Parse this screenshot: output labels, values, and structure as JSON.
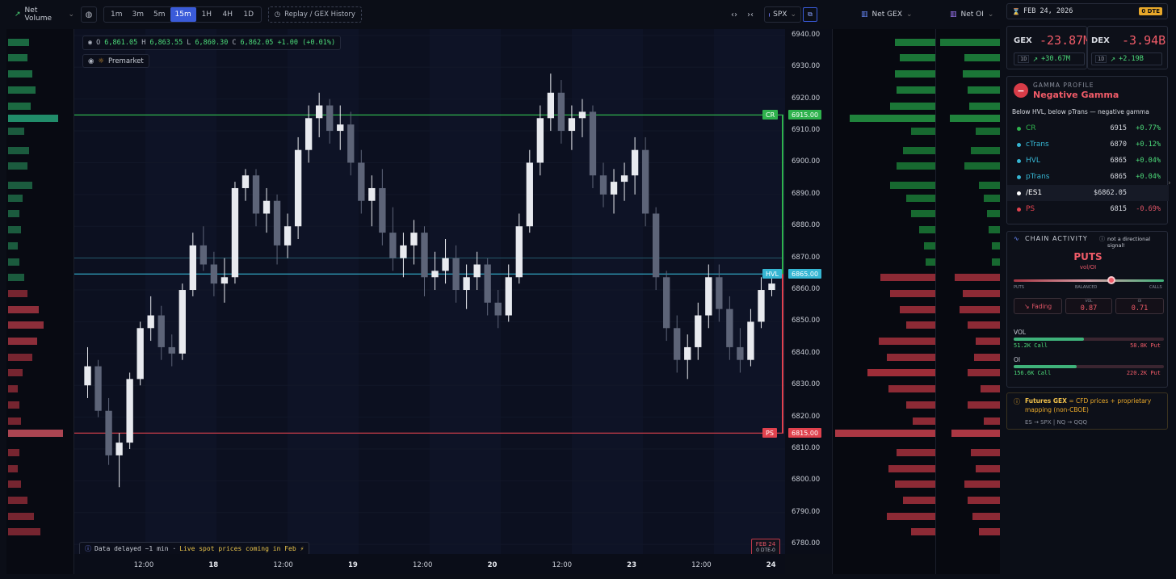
{
  "toolbar": {
    "indicator_label": "Net Volume",
    "timeframes": [
      {
        "label": "1m",
        "active": false
      },
      {
        "label": "3m",
        "active": false
      },
      {
        "label": "5m",
        "active": false
      },
      {
        "label": "15m",
        "active": true
      },
      {
        "label": "1H",
        "active": false
      },
      {
        "label": "4H",
        "active": false
      },
      {
        "label": "1D",
        "active": false
      }
    ],
    "replay_label": "Replay / GEX History",
    "symbol": "SPX",
    "net_gex_label": "Net GEX",
    "net_oi_label": "Net OI"
  },
  "ohlc": {
    "o_label": "O",
    "o": "6,861.05",
    "h_label": "H",
    "h": "6,863.55",
    "l_label": "L",
    "l": "6,860.30",
    "c_label": "C",
    "c": "6,862.05",
    "change": "+1.00 (+0.01%)"
  },
  "premarket_label": "Premarket",
  "delay_notice": {
    "text": "Data delayed ~1 min · ",
    "live": "Live spot prices coming in Feb ⚡"
  },
  "expiry_badge": {
    "date": "FEB 24",
    "tag": "0 DTE-0"
  },
  "chart_data": {
    "type": "candlestick",
    "symbol": "SPX",
    "timeframe": "15m",
    "y_ticks": [
      6940,
      6930,
      6920,
      6910,
      6900,
      6890,
      6880,
      6870,
      6860,
      6850,
      6840,
      6830,
      6820,
      6810,
      6800,
      6790,
      6780
    ],
    "y_tick_labels": [
      "6940.00",
      "6930.00",
      "6920.00",
      "6910.00",
      "6900.00",
      "6890.00",
      "6880.00",
      "6870.00",
      "6860.00",
      "6850.00",
      "6840.00",
      "6830.00",
      "6820.00",
      "6810.00",
      "6800.00",
      "6790.00",
      "6780.00"
    ],
    "ylim": [
      6777,
      6942
    ],
    "x_ticks": [
      {
        "label": "12:00",
        "bold": false
      },
      {
        "label": "18",
        "bold": true
      },
      {
        "label": "12:00",
        "bold": false
      },
      {
        "label": "19",
        "bold": true
      },
      {
        "label": "12:00",
        "bold": false
      },
      {
        "label": "20",
        "bold": true
      },
      {
        "label": "12:00",
        "bold": false
      },
      {
        "label": "23",
        "bold": true
      },
      {
        "label": "12:00",
        "bold": false
      },
      {
        "label": "24",
        "bold": true
      }
    ],
    "levels": [
      {
        "name": "CR",
        "value": 6915,
        "label": "6915.00",
        "color": "#2fb24d"
      },
      {
        "name": "HVL",
        "value": 6865,
        "label": "6865.00",
        "color": "#36b6d3"
      },
      {
        "name": "PS",
        "value": 6815,
        "label": "6815.00",
        "color": "#e0424e"
      }
    ],
    "secondary_line": 6870,
    "last_price": 6862.05,
    "candles": [
      [
        6830,
        6842,
        6826,
        6836
      ],
      [
        6836,
        6838,
        6820,
        6822
      ],
      [
        6822,
        6826,
        6805,
        6808
      ],
      [
        6808,
        6815,
        6798,
        6812
      ],
      [
        6812,
        6834,
        6810,
        6832
      ],
      [
        6832,
        6850,
        6830,
        6848
      ],
      [
        6848,
        6858,
        6844,
        6852
      ],
      [
        6852,
        6855,
        6838,
        6842
      ],
      [
        6842,
        6846,
        6836,
        6840
      ],
      [
        6840,
        6862,
        6838,
        6860
      ],
      [
        6860,
        6878,
        6858,
        6874
      ],
      [
        6874,
        6880,
        6866,
        6868
      ],
      [
        6868,
        6872,
        6858,
        6862
      ],
      [
        6862,
        6870,
        6856,
        6864
      ],
      [
        6864,
        6894,
        6862,
        6892
      ],
      [
        6892,
        6898,
        6888,
        6896
      ],
      [
        6896,
        6898,
        6880,
        6884
      ],
      [
        6884,
        6892,
        6878,
        6888
      ],
      [
        6888,
        6890,
        6868,
        6874
      ],
      [
        6874,
        6884,
        6870,
        6880
      ],
      [
        6880,
        6908,
        6876,
        6904
      ],
      [
        6904,
        6918,
        6900,
        6914
      ],
      [
        6914,
        6922,
        6908,
        6918
      ],
      [
        6918,
        6920,
        6906,
        6910
      ],
      [
        6910,
        6918,
        6904,
        6912
      ],
      [
        6912,
        6916,
        6896,
        6900
      ],
      [
        6900,
        6904,
        6884,
        6888
      ],
      [
        6888,
        6896,
        6880,
        6892
      ],
      [
        6892,
        6898,
        6874,
        6878
      ],
      [
        6878,
        6886,
        6866,
        6870
      ],
      [
        6870,
        6878,
        6864,
        6874
      ],
      [
        6874,
        6882,
        6868,
        6878
      ],
      [
        6878,
        6880,
        6858,
        6864
      ],
      [
        6864,
        6872,
        6860,
        6866
      ],
      [
        6866,
        6876,
        6862,
        6870
      ],
      [
        6870,
        6874,
        6856,
        6860
      ],
      [
        6860,
        6868,
        6854,
        6864
      ],
      [
        6864,
        6872,
        6860,
        6868
      ],
      [
        6868,
        6870,
        6852,
        6856
      ],
      [
        6856,
        6860,
        6848,
        6852
      ],
      [
        6852,
        6868,
        6850,
        6864
      ],
      [
        6864,
        6884,
        6862,
        6880
      ],
      [
        6880,
        6904,
        6878,
        6900
      ],
      [
        6900,
        6918,
        6896,
        6914
      ],
      [
        6914,
        6928,
        6910,
        6922
      ],
      [
        6922,
        6926,
        6906,
        6910
      ],
      [
        6910,
        6918,
        6904,
        6914
      ],
      [
        6914,
        6920,
        6908,
        6916
      ],
      [
        6916,
        6918,
        6892,
        6896
      ],
      [
        6896,
        6900,
        6886,
        6890
      ],
      [
        6890,
        6898,
        6884,
        6894
      ],
      [
        6894,
        6900,
        6888,
        6896
      ],
      [
        6896,
        6908,
        6890,
        6904
      ],
      [
        6904,
        6908,
        6880,
        6884
      ],
      [
        6884,
        6886,
        6860,
        6864
      ],
      [
        6864,
        6866,
        6844,
        6848
      ],
      [
        6848,
        6852,
        6834,
        6838
      ],
      [
        6838,
        6846,
        6832,
        6842
      ],
      [
        6842,
        6856,
        6838,
        6852
      ],
      [
        6852,
        6868,
        6848,
        6864
      ],
      [
        6864,
        6868,
        6850,
        6854
      ],
      [
        6854,
        6858,
        6838,
        6842
      ],
      [
        6842,
        6848,
        6834,
        6838
      ],
      [
        6838,
        6854,
        6836,
        6850
      ],
      [
        6850,
        6864,
        6848,
        6860
      ],
      [
        6860,
        6864,
        6858,
        6862
      ]
    ]
  },
  "left_profile": {
    "rows": [
      [
        6938,
        26,
        "#1e7a4a"
      ],
      [
        6933,
        24,
        "#1e7a4a"
      ],
      [
        6928,
        30,
        "#1e7a4a"
      ],
      [
        6923,
        34,
        "#1e7a4a"
      ],
      [
        6918,
        28,
        "#1e7a4a"
      ],
      [
        6914,
        62,
        "#26a37a"
      ],
      [
        6910,
        20,
        "#1e6a46"
      ],
      [
        6904,
        26,
        "#1e6a46"
      ],
      [
        6899,
        24,
        "#1e6a46"
      ],
      [
        6893,
        30,
        "#1e6a46"
      ],
      [
        6889,
        18,
        "#1e6a46"
      ],
      [
        6884,
        14,
        "#1e6a46"
      ],
      [
        6879,
        16,
        "#1e6a46"
      ],
      [
        6874,
        12,
        "#1e6a46"
      ],
      [
        6869,
        14,
        "#1e6a46"
      ],
      [
        6864,
        20,
        "#1e6a46"
      ],
      [
        6859,
        24,
        "#8a2a36"
      ],
      [
        6854,
        38,
        "#a53542"
      ],
      [
        6849,
        44,
        "#a53542"
      ],
      [
        6844,
        36,
        "#a53542"
      ],
      [
        6839,
        30,
        "#8a2a36"
      ],
      [
        6834,
        18,
        "#8a2a36"
      ],
      [
        6829,
        12,
        "#8a2a36"
      ],
      [
        6824,
        14,
        "#8a2a36"
      ],
      [
        6819,
        16,
        "#8a2a36"
      ],
      [
        6815,
        68,
        "#c8505e"
      ],
      [
        6809,
        14,
        "#8a2a36"
      ],
      [
        6804,
        12,
        "#8a2a36"
      ],
      [
        6799,
        16,
        "#8a2a36"
      ],
      [
        6794,
        24,
        "#8a2a36"
      ],
      [
        6789,
        32,
        "#8a2a36"
      ],
      [
        6784,
        40,
        "#8a2a36"
      ]
    ]
  },
  "net_gex_profile": {
    "rows": [
      [
        6938,
        50,
        "#1f8a3e"
      ],
      [
        6933,
        44,
        "#1f8a3e"
      ],
      [
        6928,
        50,
        "#1f8a3e"
      ],
      [
        6923,
        48,
        "#1f8a3e"
      ],
      [
        6918,
        56,
        "#1f8a3e"
      ],
      [
        6914,
        106,
        "#249944"
      ],
      [
        6910,
        30,
        "#1a7a36"
      ],
      [
        6904,
        40,
        "#1a7a36"
      ],
      [
        6899,
        48,
        "#1a7a36"
      ],
      [
        6893,
        56,
        "#1a7a36"
      ],
      [
        6889,
        36,
        "#1a7a36"
      ],
      [
        6884,
        30,
        "#1a7a36"
      ],
      [
        6879,
        20,
        "#1a7a36"
      ],
      [
        6874,
        14,
        "#1a7a36"
      ],
      [
        6869,
        12,
        "#1a7a36"
      ],
      [
        6864,
        68,
        "#a5303c"
      ],
      [
        6859,
        56,
        "#a5303c"
      ],
      [
        6854,
        44,
        "#a5303c"
      ],
      [
        6849,
        36,
        "#a5303c"
      ],
      [
        6844,
        70,
        "#a5303c"
      ],
      [
        6839,
        60,
        "#a5303c"
      ],
      [
        6834,
        84,
        "#b8343f"
      ],
      [
        6829,
        58,
        "#a5303c"
      ],
      [
        6824,
        36,
        "#a5303c"
      ],
      [
        6819,
        28,
        "#a5303c"
      ],
      [
        6815,
        124,
        "#c8404c"
      ],
      [
        6809,
        48,
        "#a5303c"
      ],
      [
        6804,
        58,
        "#a5303c"
      ],
      [
        6799,
        50,
        "#a5303c"
      ],
      [
        6794,
        40,
        "#a5303c"
      ],
      [
        6789,
        60,
        "#a5303c"
      ],
      [
        6784,
        30,
        "#a5303c"
      ]
    ]
  },
  "net_oi_profile": {
    "rows": [
      [
        6938,
        74,
        "#1f8a3e"
      ],
      [
        6933,
        44,
        "#1f8a3e"
      ],
      [
        6928,
        46,
        "#1f8a3e"
      ],
      [
        6923,
        40,
        "#1f8a3e"
      ],
      [
        6918,
        38,
        "#1f8a3e"
      ],
      [
        6914,
        62,
        "#249944"
      ],
      [
        6910,
        30,
        "#1a7a36"
      ],
      [
        6904,
        36,
        "#1a7a36"
      ],
      [
        6899,
        44,
        "#1a7a36"
      ],
      [
        6893,
        26,
        "#1a7a36"
      ],
      [
        6889,
        20,
        "#1a7a36"
      ],
      [
        6884,
        16,
        "#1a7a36"
      ],
      [
        6879,
        14,
        "#1a7a36"
      ],
      [
        6874,
        10,
        "#1a7a36"
      ],
      [
        6869,
        10,
        "#1a7a36"
      ],
      [
        6864,
        56,
        "#a5303c"
      ],
      [
        6859,
        46,
        "#a5303c"
      ],
      [
        6854,
        50,
        "#a5303c"
      ],
      [
        6849,
        40,
        "#a5303c"
      ],
      [
        6844,
        30,
        "#a5303c"
      ],
      [
        6839,
        32,
        "#a5303c"
      ],
      [
        6834,
        40,
        "#a5303c"
      ],
      [
        6829,
        24,
        "#a5303c"
      ],
      [
        6824,
        40,
        "#a5303c"
      ],
      [
        6819,
        20,
        "#a5303c"
      ],
      [
        6815,
        60,
        "#c8404c"
      ],
      [
        6809,
        36,
        "#a5303c"
      ],
      [
        6804,
        30,
        "#a5303c"
      ],
      [
        6799,
        44,
        "#a5303c"
      ],
      [
        6794,
        40,
        "#a5303c"
      ],
      [
        6789,
        34,
        "#a5303c"
      ],
      [
        6784,
        26,
        "#a5303c"
      ]
    ]
  },
  "right_panel": {
    "date": "FEB 24, 2026",
    "dte_badge": "0 DTE",
    "gex": {
      "label": "GEX",
      "value": "-23.87M",
      "period": "1D",
      "change": "+30.67M"
    },
    "dex": {
      "label": "DEX",
      "value": "-3.94B",
      "period": "1D",
      "change": "+2.19B"
    },
    "gamma": {
      "title": "GAMMA PROFILE",
      "status": "Negative Gamma",
      "desc": "Below HVL, below pTrans — negative gamma",
      "levels": [
        {
          "name": "CR",
          "value": "6915",
          "pct": "+0.77%",
          "color": "#2fb24d",
          "pct_color": "#4ddb7a"
        },
        {
          "name": "cTrans",
          "value": "6870",
          "pct": "+0.12%",
          "color": "#36b6d3",
          "pct_color": "#4ddb7a"
        },
        {
          "name": "HVL",
          "value": "6865",
          "pct": "+0.04%",
          "color": "#36b6d3",
          "pct_color": "#4ddb7a"
        },
        {
          "name": "pTrans",
          "value": "6865",
          "pct": "+0.04%",
          "color": "#36b6d3",
          "pct_color": "#4ddb7a"
        },
        {
          "name": "/ES1",
          "value": "$6862.05",
          "pct": "",
          "color": "#ffffff",
          "pct_color": "#ffffff"
        },
        {
          "name": "PS",
          "value": "6815",
          "pct": "-0.69%",
          "color": "#e0424e",
          "pct_color": "#e05566"
        }
      ]
    },
    "chain": {
      "title": "CHAIN ACTIVITY",
      "note": "not a directional signal!",
      "side": "PUTS",
      "side_sub": "vol/OI",
      "scale_left": "PUTS",
      "scale_mid": "BALANCED",
      "scale_right": "CALLS",
      "slider_value": 0.65,
      "trend": "Fading",
      "vol_label": "VOL",
      "vol_value": "0.87",
      "oi_label": "OI",
      "oi_value": "0.71",
      "vol": {
        "label": "VOL",
        "call": "51.2K Call",
        "put": "58.8K Put",
        "call_frac": 0.47
      },
      "oi": {
        "label": "OI",
        "call": "156.6K Call",
        "put": "220.2K Put",
        "call_frac": 0.42
      }
    },
    "futures": {
      "title": "Futures GEX",
      "rest": " = CFD prices + proprietary mapping (non-CBOE)",
      "map": "ES → SPX | NQ → QQQ"
    }
  }
}
